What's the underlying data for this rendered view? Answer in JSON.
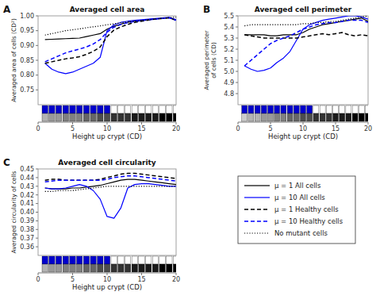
{
  "chart_data": [
    {
      "type": "line",
      "title": "Averaged cell area",
      "x_label": "Height up crypt (CD)",
      "y_label": "Averaged area of cells (CD²)",
      "annotations": [
        "A"
      ],
      "x": [
        1,
        2,
        3,
        4,
        5,
        6,
        7,
        8,
        9,
        10,
        11,
        12,
        13,
        14,
        15,
        16,
        17,
        18,
        19,
        20
      ],
      "xlim": [
        0,
        20
      ],
      "xticks": [
        0,
        5,
        10,
        15,
        20
      ],
      "ylim": [
        0.7,
        1.0
      ],
      "yticks": [
        0.75,
        {
          "value": 0.8,
          "label": "0.80"
        },
        0.85,
        {
          "value": 0.9,
          "label": "0.90"
        },
        0.95,
        {
          "value": 1.0,
          "label": "1.00"
        }
      ],
      "series": [
        {
          "name": "μ = 1 All cells",
          "color": "black",
          "line_style": "solid",
          "values": [
            0.92,
            0.921,
            0.922,
            0.923,
            0.924,
            0.925,
            0.93,
            0.935,
            0.94,
            0.955,
            0.965,
            0.972,
            0.978,
            0.982,
            0.985,
            0.988,
            0.99,
            0.992,
            0.994,
            0.986
          ]
        },
        {
          "name": "μ = 10 All cells",
          "color": "blue",
          "line_style": "solid",
          "values": [
            0.84,
            0.82,
            0.81,
            0.805,
            0.81,
            0.82,
            0.83,
            0.84,
            0.86,
            0.95,
            0.97,
            0.978,
            0.982,
            0.985,
            0.987,
            0.989,
            0.991,
            0.993,
            0.995,
            0.987
          ]
        },
        {
          "name": "μ = 1 Healthy cells",
          "color": "black",
          "line_style": "dashed",
          "values": [
            0.84,
            0.845,
            0.85,
            0.855,
            0.858,
            0.862,
            0.87,
            0.88,
            0.895,
            0.93,
            0.952,
            0.963,
            0.971,
            0.978,
            0.982,
            0.986,
            0.989,
            0.991,
            0.993,
            0.985
          ]
        },
        {
          "name": "μ = 10 Healthy cells",
          "color": "blue",
          "line_style": "dashed",
          "values": [
            0.845,
            0.855,
            0.865,
            0.875,
            0.882,
            0.888,
            0.895,
            0.905,
            0.92,
            0.945,
            0.962,
            0.971,
            0.977,
            0.981,
            0.984,
            0.987,
            0.989,
            0.991,
            0.993,
            0.985
          ]
        },
        {
          "name": "No mutant cells",
          "color": "black",
          "line_style": "dotted",
          "values": [
            0.935,
            0.94,
            0.945,
            0.95,
            0.953,
            0.956,
            0.96,
            0.963,
            0.966,
            0.97,
            0.973,
            0.977,
            0.98,
            0.982,
            0.984,
            0.987,
            0.989,
            0.992,
            0.994,
            0.996
          ]
        }
      ],
      "strip_top": [
        1,
        1,
        1,
        1,
        1,
        1,
        1,
        1,
        1,
        1,
        0,
        0,
        0,
        0,
        0,
        0,
        0,
        0,
        0,
        0
      ],
      "strip_bottom": [
        7,
        6,
        6,
        5,
        5,
        5,
        4,
        4,
        3,
        3,
        2,
        2,
        2,
        1,
        1,
        1,
        1,
        0,
        0,
        0
      ],
      "strip_max": 10
    },
    {
      "type": "line",
      "title": "Averaged cell perimeter",
      "x_label": "Height up crypt (CD)",
      "y_label": "Averaged perimeter\nof cells (CD)",
      "annotations": [
        "B"
      ],
      "x": [
        1,
        2,
        3,
        4,
        5,
        6,
        7,
        8,
        9,
        10,
        11,
        12,
        13,
        14,
        15,
        16,
        17,
        18,
        19,
        20
      ],
      "xlim": [
        0,
        20
      ],
      "xticks": [
        0,
        5,
        10,
        15,
        20
      ],
      "ylim": [
        4.7,
        5.5
      ],
      "yticks": [
        4.8,
        4.9,
        {
          "value": 5.0,
          "label": "5.0"
        },
        5.1,
        5.2,
        5.3,
        5.4,
        5.5
      ],
      "series": [
        {
          "color": "black",
          "line_style": "solid",
          "values": [
            5.33,
            5.33,
            5.33,
            5.33,
            5.32,
            5.32,
            5.33,
            5.33,
            5.33,
            5.35,
            5.38,
            5.4,
            5.42,
            5.43,
            5.44,
            5.45,
            5.46,
            5.47,
            5.48,
            5.45
          ]
        },
        {
          "color": "blue",
          "line_style": "solid",
          "values": [
            5.05,
            5.02,
            5.0,
            5.01,
            5.03,
            5.08,
            5.12,
            5.18,
            5.28,
            5.38,
            5.42,
            5.44,
            5.46,
            5.47,
            5.48,
            5.49,
            5.5,
            5.5,
            5.49,
            5.47
          ]
        },
        {
          "color": "black",
          "line_style": "dashed",
          "values": [
            5.33,
            5.32,
            5.31,
            5.3,
            5.3,
            5.3,
            5.3,
            5.3,
            5.3,
            5.31,
            5.32,
            5.33,
            5.34,
            5.33,
            5.34,
            5.35,
            5.33,
            5.32,
            5.33,
            5.32
          ]
        },
        {
          "color": "blue",
          "line_style": "dashed",
          "values": [
            5.05,
            5.1,
            5.15,
            5.2,
            5.25,
            5.28,
            5.3,
            5.32,
            5.35,
            5.38,
            5.4,
            5.42,
            5.43,
            5.44,
            5.44,
            5.45,
            5.46,
            5.46,
            5.46,
            5.44
          ]
        },
        {
          "color": "black",
          "line_style": "dotted",
          "values": [
            5.41,
            5.42,
            5.42,
            5.42,
            5.42,
            5.42,
            5.42,
            5.42,
            5.42,
            5.43,
            5.43,
            5.44,
            5.44,
            5.45,
            5.45,
            5.46,
            5.47,
            5.48,
            5.49,
            5.5
          ]
        }
      ],
      "strip_top": [
        1,
        1,
        1,
        1,
        1,
        1,
        1,
        1,
        1,
        1,
        1,
        0,
        0,
        0,
        0,
        0,
        0,
        0,
        0,
        0
      ],
      "strip_bottom": [
        8,
        7,
        7,
        6,
        6,
        5,
        5,
        4,
        4,
        3,
        3,
        2,
        2,
        2,
        1,
        1,
        1,
        0,
        0,
        0
      ],
      "strip_max": 10
    },
    {
      "type": "line",
      "title": "Averaged cell circularity",
      "x_label": "Height up crypt (CD)",
      "y_label": "Averaged circularity of cells",
      "annotations": [
        "C"
      ],
      "x": [
        1,
        2,
        3,
        4,
        5,
        6,
        7,
        8,
        9,
        10,
        11,
        12,
        13,
        14,
        15,
        16,
        17,
        18,
        19,
        20
      ],
      "xlim": [
        0,
        20
      ],
      "xticks": [
        0,
        5,
        10,
        15,
        20
      ],
      "ylim": [
        0.35,
        0.45
      ],
      "yticks": [
        0.36,
        0.37,
        0.38,
        0.39,
        {
          "value": 0.4,
          "label": "0.40"
        },
        0.41,
        0.42,
        0.43,
        0.44,
        0.45
      ],
      "series": [
        {
          "color": "black",
          "line_style": "solid",
          "values": [
            0.428,
            0.427,
            0.427,
            0.427,
            0.428,
            0.428,
            0.429,
            0.43,
            0.431,
            0.433,
            0.435,
            0.437,
            0.438,
            0.438,
            0.437,
            0.436,
            0.435,
            0.434,
            0.433,
            0.432
          ]
        },
        {
          "color": "blue",
          "line_style": "solid",
          "values": [
            0.428,
            0.427,
            0.427,
            0.428,
            0.43,
            0.432,
            0.43,
            0.425,
            0.415,
            0.395,
            0.393,
            0.405,
            0.428,
            0.432,
            0.433,
            0.433,
            0.432,
            0.431,
            0.43,
            0.43
          ]
        },
        {
          "color": "black",
          "line_style": "dashed",
          "values": [
            0.437,
            0.438,
            0.438,
            0.437,
            0.437,
            0.437,
            0.437,
            0.437,
            0.438,
            0.44,
            0.442,
            0.444,
            0.445,
            0.445,
            0.444,
            0.443,
            0.442,
            0.441,
            0.44,
            0.439
          ]
        },
        {
          "color": "blue",
          "line_style": "dashed",
          "values": [
            0.435,
            0.436,
            0.437,
            0.437,
            0.437,
            0.437,
            0.437,
            0.437,
            0.437,
            0.438,
            0.44,
            0.441,
            0.442,
            0.442,
            0.441,
            0.44,
            0.439,
            0.438,
            0.437,
            0.436
          ]
        },
        {
          "color": "black",
          "line_style": "dotted",
          "values": [
            0.424,
            0.424,
            0.425,
            0.425,
            0.425,
            0.426,
            0.427,
            0.428,
            0.429,
            0.43,
            0.43,
            0.43,
            0.43,
            0.43,
            0.43,
            0.43,
            0.43,
            0.43,
            0.43,
            0.43
          ]
        }
      ],
      "strip_top": [
        1,
        1,
        1,
        1,
        1,
        1,
        1,
        1,
        1,
        1,
        0,
        0,
        0,
        0,
        0,
        0,
        0,
        0,
        0,
        0
      ],
      "strip_bottom": [
        7,
        6,
        6,
        5,
        5,
        5,
        4,
        4,
        3,
        3,
        2,
        2,
        2,
        1,
        1,
        1,
        1,
        0,
        0,
        0
      ],
      "strip_max": 10
    }
  ]
}
